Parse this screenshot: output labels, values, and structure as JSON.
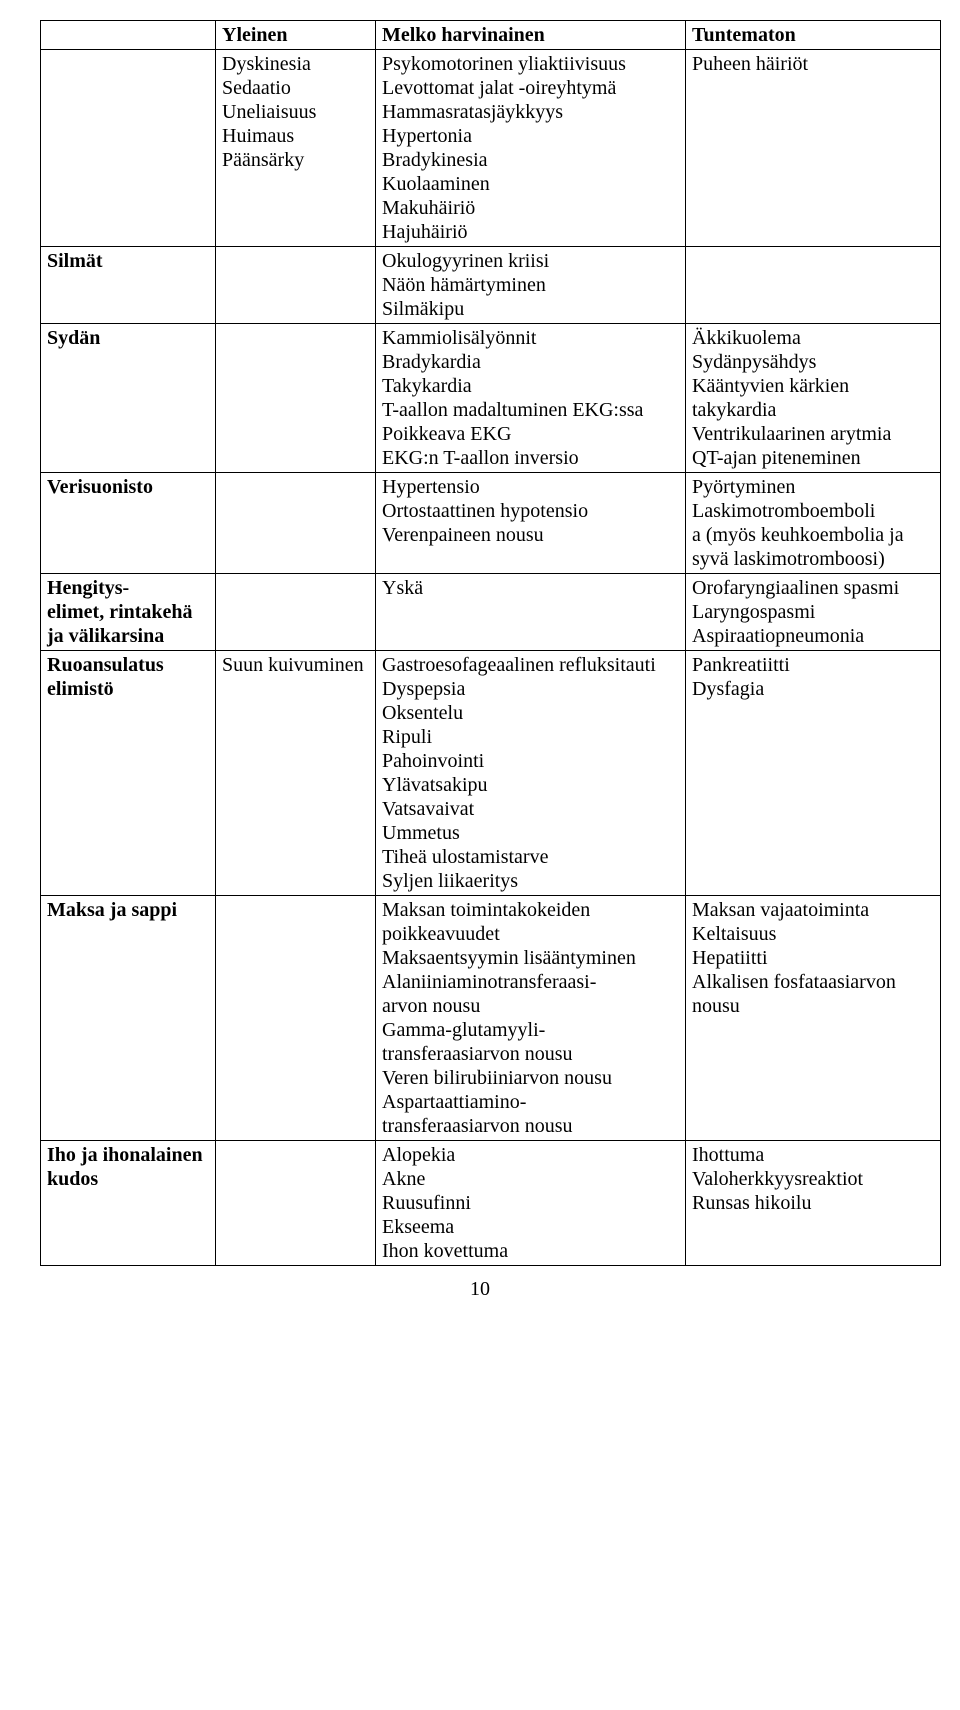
{
  "headers": {
    "col0": "",
    "col1": "Yleinen",
    "col2": "Melko harvinainen",
    "col3": "Tuntematon"
  },
  "rows": [
    {
      "label": "",
      "common": "Dyskinesia\nSedaatio\nUneliaisuus\nHuimaus\nPäänsärky",
      "uncommon": "Psykomotorinen yliaktiivisuus\nLevottomat jalat -oireyhtymä\nHammasratasjäykkyys\nHypertonia\nBradykinesia\nKuolaaminen\nMakuhäiriö\nHajuhäiriö",
      "unknown": "Puheen häiriöt"
    },
    {
      "label": "Silmät",
      "common": "",
      "uncommon": "Okulogyyrinen kriisi\nNäön hämärtyminen\nSilmäkipu",
      "unknown": ""
    },
    {
      "label": "Sydän",
      "common": "",
      "uncommon": "Kammiolisälyönnit\nBradykardia\nTakykardia\n T-aallon madaltuminen EKG:ssa\nPoikkeava EKG\nEKG:n T-aallon inversio",
      "unknown": "Äkkikuolema\nSydänpysähdys\nKääntyvien kärkien takykardia\nVentrikulaarinen arytmia\nQT-ajan piteneminen"
    },
    {
      "label": "Verisuonisto",
      "common": "",
      "uncommon": "Hypertensio\nOrtostaattinen hypotensio\nVerenpaineen nousu",
      "unknown": "Pyörtyminen\nLaskimotromboemboli\na (myös keuhkoembolia ja syvä laskimotromboosi)"
    },
    {
      "label": "Hengitys-\nelimet, rintakehä ja välikarsina",
      "common": "",
      "uncommon": "Yskä",
      "unknown": "Orofaryngiaalinen spasmi\nLaryngospasmi\nAspiraatiopneumonia"
    },
    {
      "label": "Ruoansulatus\nelimistö",
      "common": "Suun kuivuminen",
      "uncommon": "Gastroesofageaalinen refluksitauti\nDyspepsia\nOksentelu\nRipuli\nPahoinvointi\nYlävatsakipu\nVatsavaivat\nUmmetus\nTiheä ulostamistarve\nSyljen liikaeritys",
      "unknown": "Pankreatiitti\nDysfagia"
    },
    {
      "label": "Maksa ja sappi",
      "common": "",
      "uncommon": "Maksan toimintakokeiden poikkeavuudet\nMaksaentsyymin lisääntyminen\nAlaniiniaminotransferaasi-\narvon nousu\nGamma-glutamyyli-\ntransferaasiarvon nousu\nVeren bilirubiiniarvon nousu\nAspartaattiamino-\ntransferaasiarvon nousu",
      "unknown": "Maksan vajaatoiminta\nKeltaisuus\nHepatiitti\nAlkalisen fosfataasiarvon nousu"
    },
    {
      "label": "Iho ja ihonalainen kudos",
      "common": "",
      "uncommon": "Alopekia\nAkne\nRuusufinni\nEkseema\nIhon kovettuma",
      "unknown": "Ihottuma\nValoherkkyysreaktiot\nRunsas hikoilu"
    }
  ],
  "page_number": "10"
}
